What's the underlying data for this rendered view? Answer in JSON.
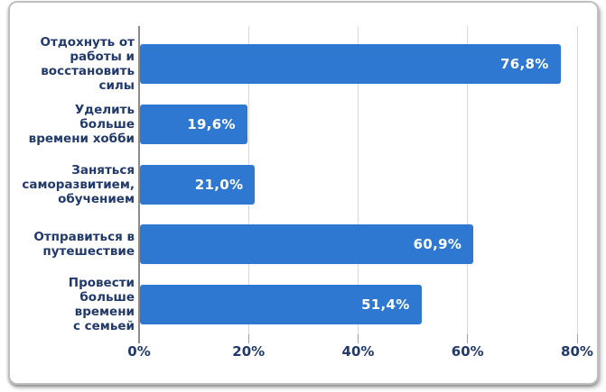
{
  "chart_data": {
    "type": "bar",
    "orientation": "horizontal",
    "title": "",
    "xlabel": "",
    "ylabel": "",
    "xlim": [
      0,
      80
    ],
    "grid": true,
    "legend": "none",
    "categories": [
      "Отдохнуть от\nработы и\nвосстановить\nсилы",
      "Уделить больше\nвремени хобби",
      "Заняться\nсаморазвитием,\nобучением",
      "Отправиться в\nпутешествие",
      "Провести\nбольше времени\nс семьей"
    ],
    "values": [
      76.8,
      19.6,
      21.0,
      60.9,
      51.4
    ],
    "value_labels": [
      "76,8%",
      "19,6%",
      "21,0%",
      "60,9%",
      "51,4%"
    ],
    "x_ticks": [
      "0%",
      "20%",
      "40%",
      "60%",
      "80%"
    ],
    "x_tick_values": [
      0,
      20,
      40,
      60,
      80
    ],
    "colors": {
      "bar": "#2F78D2",
      "label_text": "#21396B",
      "value_text": "#FFFFFF",
      "gridline": "#D8D8D8",
      "axis_line": "#8C8C8C",
      "tick_mark": "#A0A0A0",
      "card_border": "#BFBFBF",
      "background": "#FFFFFF"
    }
  }
}
